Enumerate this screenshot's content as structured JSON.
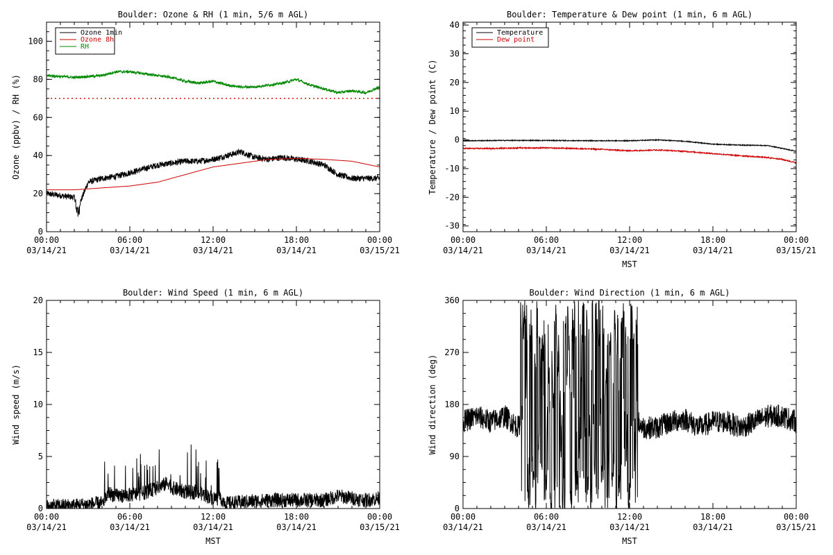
{
  "chart_data": [
    {
      "type": "line",
      "title": "Boulder: Ozone & RH (1 min, 5/6 m AGL)",
      "xlabel": "",
      "ylabel": "Ozone (ppbv) / RH (%)",
      "xlim": [
        0,
        24
      ],
      "ylim": [
        0,
        110
      ],
      "yticks": [
        "0",
        "20",
        "40",
        "60",
        "80",
        "100"
      ],
      "ytick_values": [
        0,
        20,
        40,
        60,
        80,
        100
      ],
      "xticks": [
        {
          "l1": "00:00",
          "l2": "03/14/21"
        },
        {
          "l1": "06:00",
          "l2": "03/14/21"
        },
        {
          "l1": "12:00",
          "l2": "03/14/21"
        },
        {
          "l1": "18:00",
          "l2": "03/14/21"
        },
        {
          "l1": "00:00",
          "l2": "03/15/21"
        }
      ],
      "legend": {
        "position": "top-left"
      },
      "hline": {
        "y": 70,
        "color": "#cc0000",
        "style": "dotted"
      },
      "series": [
        {
          "name": "Ozone 1min",
          "color": "#000000",
          "noise": 1.6,
          "x": [
            0,
            1,
            2,
            2.3,
            3,
            4,
            5,
            6,
            7,
            8,
            9,
            10,
            11,
            12,
            13,
            14,
            15,
            16,
            17,
            18,
            19,
            20,
            21,
            22,
            23,
            24
          ],
          "y": [
            20,
            19,
            18,
            13,
            26,
            28,
            29,
            31,
            33,
            35,
            36,
            37,
            37,
            38,
            40,
            42,
            39,
            38,
            39,
            38,
            37,
            35,
            30,
            28,
            28,
            28
          ]
        },
        {
          "name": "Ozone 8h",
          "color": "#cc0000",
          "noise": 0,
          "x": [
            0,
            2,
            4,
            6,
            8,
            10,
            12,
            14,
            16,
            18,
            20,
            22,
            24
          ],
          "y": [
            22,
            22,
            23,
            24,
            26,
            30,
            34,
            36,
            38,
            38.5,
            38,
            37,
            34
          ]
        },
        {
          "name": "RH",
          "color": "#008800",
          "noise": 0.7,
          "x": [
            0,
            2,
            4,
            5,
            6,
            7,
            8,
            9,
            10,
            11,
            12,
            13,
            14,
            15,
            16,
            17,
            18,
            19,
            20,
            21,
            22,
            23,
            24
          ],
          "y": [
            82,
            81,
            82,
            84,
            84,
            83,
            82,
            81,
            79,
            78,
            79,
            77,
            76,
            76,
            77,
            78,
            80,
            77,
            75,
            73,
            74,
            73,
            76
          ]
        }
      ]
    },
    {
      "type": "line",
      "title": "Boulder: Temperature & Dew point (1 min, 6 m AGL)",
      "xlabel": "MST",
      "ylabel": "Temperature / Dew point (C)",
      "xlim": [
        0,
        24
      ],
      "ylim": [
        -32,
        41
      ],
      "yticks": [
        "-30",
        "-20",
        "-10",
        "0",
        "10",
        "20",
        "30",
        "40"
      ],
      "ytick_values": [
        -30,
        -20,
        -10,
        0,
        10,
        20,
        30,
        40
      ],
      "xticks": [
        {
          "l1": "00:00",
          "l2": "03/14/21"
        },
        {
          "l1": "06:00",
          "l2": "03/14/21"
        },
        {
          "l1": "12:00",
          "l2": "03/14/21"
        },
        {
          "l1": "18:00",
          "l2": "03/14/21"
        },
        {
          "l1": "00:00",
          "l2": "03/15/21"
        }
      ],
      "legend": {
        "position": "top-left"
      },
      "series": [
        {
          "name": "Temperature",
          "color": "#000000",
          "noise": 0.15,
          "x": [
            0,
            3,
            6,
            9,
            12,
            14,
            16,
            18,
            20,
            22,
            23,
            24
          ],
          "y": [
            -0.3,
            -0.2,
            -0.2,
            -0.3,
            -0.3,
            0,
            -0.5,
            -1.5,
            -1.8,
            -2,
            -3,
            -4
          ]
        },
        {
          "name": "Dew point",
          "color": "#cc0000",
          "noise": 0.2,
          "x": [
            0,
            2,
            4,
            6,
            8,
            10,
            12,
            14,
            16,
            18,
            20,
            22,
            23,
            24
          ],
          "y": [
            -3,
            -3,
            -2.8,
            -2.8,
            -3,
            -3.3,
            -3.8,
            -3.5,
            -4,
            -4.8,
            -5.5,
            -6.2,
            -6.8,
            -8
          ]
        }
      ]
    },
    {
      "type": "line",
      "title": "Boulder: Wind Speed (1 min, 6 m AGL)",
      "xlabel": "MST",
      "ylabel": "Wind speed (m/s)",
      "xlim": [
        0,
        24
      ],
      "ylim": [
        0,
        20
      ],
      "yticks": [
        "0",
        "5",
        "10",
        "15",
        "20"
      ],
      "ytick_values": [
        0,
        5,
        10,
        15,
        20
      ],
      "xticks": [
        {
          "l1": "00:00",
          "l2": "03/14/21"
        },
        {
          "l1": "06:00",
          "l2": "03/14/21"
        },
        {
          "l1": "12:00",
          "l2": "03/14/21"
        },
        {
          "l1": "18:00",
          "l2": "03/14/21"
        },
        {
          "l1": "00:00",
          "l2": "03/15/21"
        }
      ],
      "series": [
        {
          "name": "",
          "color": "#000000",
          "noise": 0.7,
          "clipmin": 0,
          "x": [
            0,
            2,
            4,
            4.5,
            5,
            6,
            7,
            8,
            8.8,
            9,
            10,
            11,
            12,
            12.5,
            13,
            14,
            16,
            18,
            20,
            21,
            22,
            23,
            24
          ],
          "y": [
            0.2,
            0.3,
            0.5,
            1.5,
            1.2,
            1.3,
            1.5,
            2.0,
            2.5,
            2.0,
            1.6,
            1.5,
            1.0,
            1.0,
            0.5,
            0.6,
            0.8,
            0.8,
            0.8,
            1.2,
            1.0,
            0.8,
            1.0
          ]
        }
      ]
    },
    {
      "type": "line",
      "title": "Boulder: Wind Direction (1 min, 6 m AGL)",
      "xlabel": "MST",
      "ylabel": "Wind direction (deg)",
      "xlim": [
        0,
        24
      ],
      "ylim": [
        0,
        360
      ],
      "yticks": [
        "0",
        "90",
        "180",
        "270",
        "360"
      ],
      "ytick_values": [
        0,
        90,
        180,
        270,
        360
      ],
      "xticks": [
        {
          "l1": "00:00",
          "l2": "03/14/21"
        },
        {
          "l1": "06:00",
          "l2": "03/14/21"
        },
        {
          "l1": "12:00",
          "l2": "03/14/21"
        },
        {
          "l1": "18:00",
          "l2": "03/14/21"
        },
        {
          "l1": "00:00",
          "l2": "03/15/21"
        }
      ],
      "series": [
        {
          "name": "",
          "color": "#000000",
          "noise": 20,
          "clipmin": 0,
          "clipmax": 360,
          "chaos": [
            4.1,
            12.6
          ],
          "x": [
            0,
            1,
            2,
            3,
            4,
            4.1,
            12.6,
            13,
            14,
            15,
            16,
            17,
            18,
            19,
            20,
            21,
            22,
            23,
            24
          ],
          "y": [
            150,
            160,
            150,
            160,
            140,
            150,
            150,
            140,
            140,
            150,
            155,
            140,
            150,
            150,
            140,
            150,
            160,
            160,
            150
          ]
        }
      ]
    }
  ]
}
